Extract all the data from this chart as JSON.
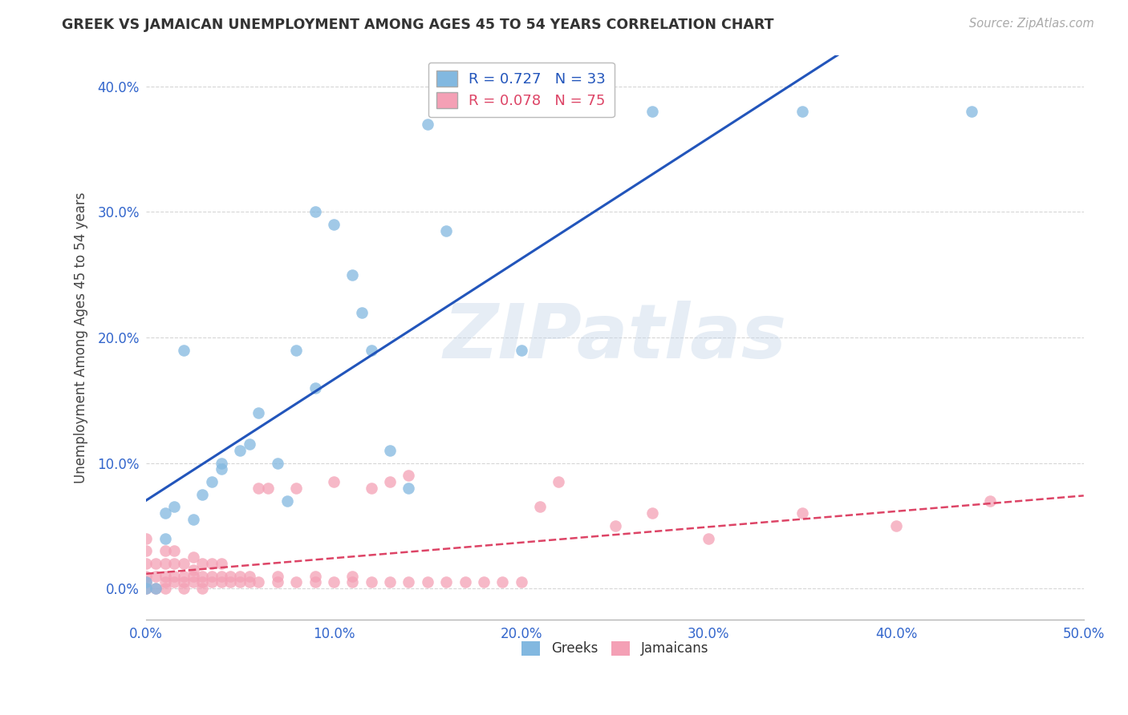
{
  "title": "GREEK VS JAMAICAN UNEMPLOYMENT AMONG AGES 45 TO 54 YEARS CORRELATION CHART",
  "source": "Source: ZipAtlas.com",
  "xlim": [
    0.0,
    0.5
  ],
  "ylim": [
    -0.025,
    0.425
  ],
  "x_ticks": [
    0.0,
    0.1,
    0.2,
    0.3,
    0.4,
    0.5
  ],
  "y_ticks": [
    0.0,
    0.1,
    0.2,
    0.3,
    0.4
  ],
  "greek_R": 0.727,
  "greek_N": 33,
  "jamaican_R": 0.078,
  "jamaican_N": 75,
  "greek_color": "#82b8e0",
  "jamaican_color": "#f4a0b5",
  "greek_line_color": "#2255bb",
  "jamaican_line_color": "#dd4466",
  "watermark_text": "ZIPatlas",
  "greek_x": [
    0.0,
    0.0,
    0.005,
    0.01,
    0.01,
    0.015,
    0.02,
    0.025,
    0.03,
    0.035,
    0.04,
    0.04,
    0.05,
    0.055,
    0.06,
    0.07,
    0.075,
    0.08,
    0.09,
    0.09,
    0.1,
    0.11,
    0.115,
    0.12,
    0.13,
    0.14,
    0.15,
    0.16,
    0.18,
    0.2,
    0.27,
    0.35,
    0.44
  ],
  "greek_y": [
    0.0,
    0.005,
    0.0,
    0.04,
    0.06,
    0.065,
    0.19,
    0.055,
    0.075,
    0.085,
    0.095,
    0.1,
    0.11,
    0.115,
    0.14,
    0.1,
    0.07,
    0.19,
    0.16,
    0.3,
    0.29,
    0.25,
    0.22,
    0.19,
    0.11,
    0.08,
    0.37,
    0.285,
    0.38,
    0.19,
    0.38,
    0.38,
    0.38
  ],
  "jamaican_x": [
    0.0,
    0.0,
    0.0,
    0.0,
    0.0,
    0.0,
    0.005,
    0.005,
    0.005,
    0.01,
    0.01,
    0.01,
    0.01,
    0.01,
    0.015,
    0.015,
    0.015,
    0.015,
    0.02,
    0.02,
    0.02,
    0.02,
    0.025,
    0.025,
    0.025,
    0.025,
    0.03,
    0.03,
    0.03,
    0.03,
    0.035,
    0.035,
    0.035,
    0.04,
    0.04,
    0.04,
    0.045,
    0.045,
    0.05,
    0.05,
    0.055,
    0.055,
    0.06,
    0.06,
    0.065,
    0.07,
    0.07,
    0.08,
    0.08,
    0.09,
    0.09,
    0.1,
    0.1,
    0.11,
    0.11,
    0.12,
    0.12,
    0.13,
    0.13,
    0.14,
    0.14,
    0.15,
    0.16,
    0.17,
    0.18,
    0.19,
    0.2,
    0.21,
    0.22,
    0.25,
    0.27,
    0.3,
    0.35,
    0.4,
    0.45
  ],
  "jamaican_y": [
    0.0,
    0.005,
    0.01,
    0.02,
    0.03,
    0.04,
    0.0,
    0.01,
    0.02,
    0.0,
    0.005,
    0.01,
    0.02,
    0.03,
    0.005,
    0.01,
    0.02,
    0.03,
    0.0,
    0.005,
    0.01,
    0.02,
    0.005,
    0.01,
    0.015,
    0.025,
    0.0,
    0.005,
    0.01,
    0.02,
    0.005,
    0.01,
    0.02,
    0.005,
    0.01,
    0.02,
    0.005,
    0.01,
    0.005,
    0.01,
    0.005,
    0.01,
    0.005,
    0.08,
    0.08,
    0.005,
    0.01,
    0.005,
    0.08,
    0.005,
    0.01,
    0.005,
    0.085,
    0.005,
    0.01,
    0.005,
    0.08,
    0.005,
    0.085,
    0.005,
    0.09,
    0.005,
    0.005,
    0.005,
    0.005,
    0.005,
    0.005,
    0.065,
    0.085,
    0.05,
    0.06,
    0.04,
    0.06,
    0.05,
    0.07
  ]
}
